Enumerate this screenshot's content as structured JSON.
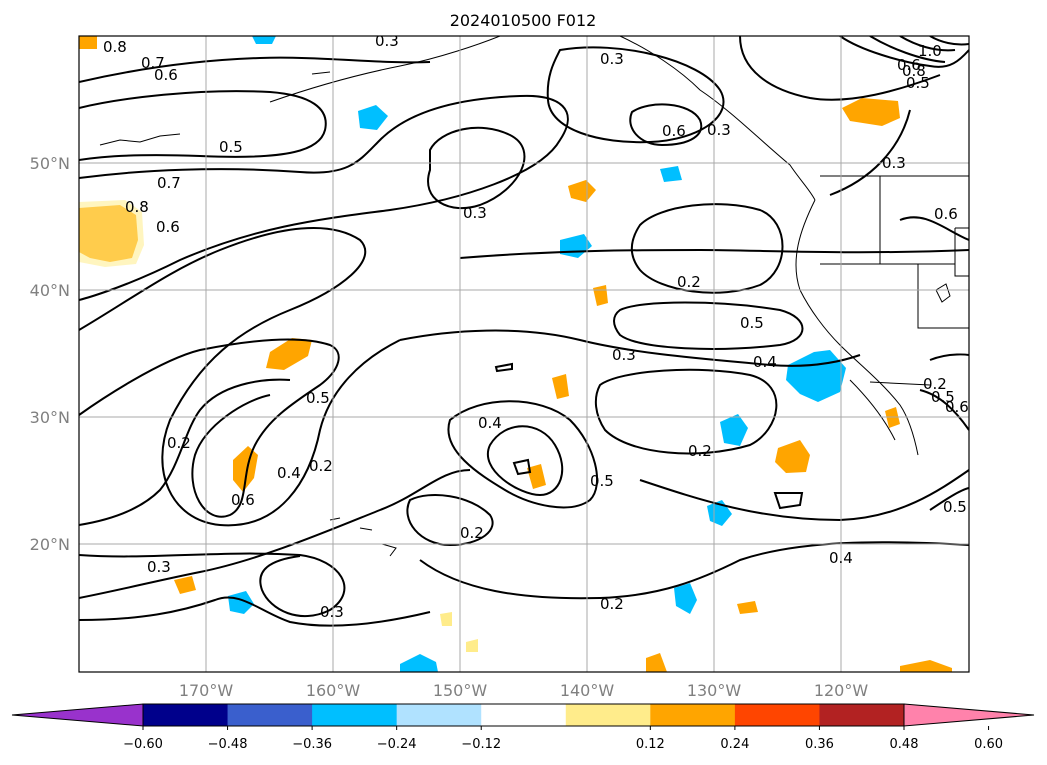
{
  "title": "2024010500 F012",
  "map": {
    "lat_labels": [
      "50°N",
      "40°N",
      "30°N",
      "20°N"
    ],
    "lon_labels": [
      "170°W",
      "160°W",
      "150°W",
      "140°W",
      "130°W",
      "120°W"
    ],
    "gridlines": true,
    "contour_color": "#000000",
    "contour_labels": [
      "0.8",
      "0.7",
      "0.6",
      "0.5",
      "0.3",
      "0.6",
      "0.3",
      "0.3",
      "0.6",
      "1.0",
      "0.8",
      "0.5",
      "0.3",
      "0.8",
      "0.7",
      "0.6",
      "0.3",
      "0.2",
      "0.5",
      "0.3",
      "0.4",
      "0.5",
      "0.2",
      "0.6",
      "0.4",
      "0.2",
      "0.4",
      "0.2",
      "0.5",
      "0.2",
      "0.3",
      "0.2",
      "0.4",
      "0.5",
      "0.6",
      "0.5",
      "0.3",
      "0.6",
      "0.2"
    ]
  },
  "colorbar": {
    "ticks": [
      "−0.60",
      "−0.48",
      "−0.36",
      "−0.24",
      "−0.12",
      "0.12",
      "0.24",
      "0.36",
      "0.48",
      "0.60"
    ],
    "colors": [
      "#9932cc",
      "#00008b",
      "#3a5fcd",
      "#00bfff",
      "#b0e2ff",
      "#ffffff",
      "#ffec8b",
      "#ffa500",
      "#ff4500",
      "#b22222",
      "#ff82ab"
    ]
  }
}
